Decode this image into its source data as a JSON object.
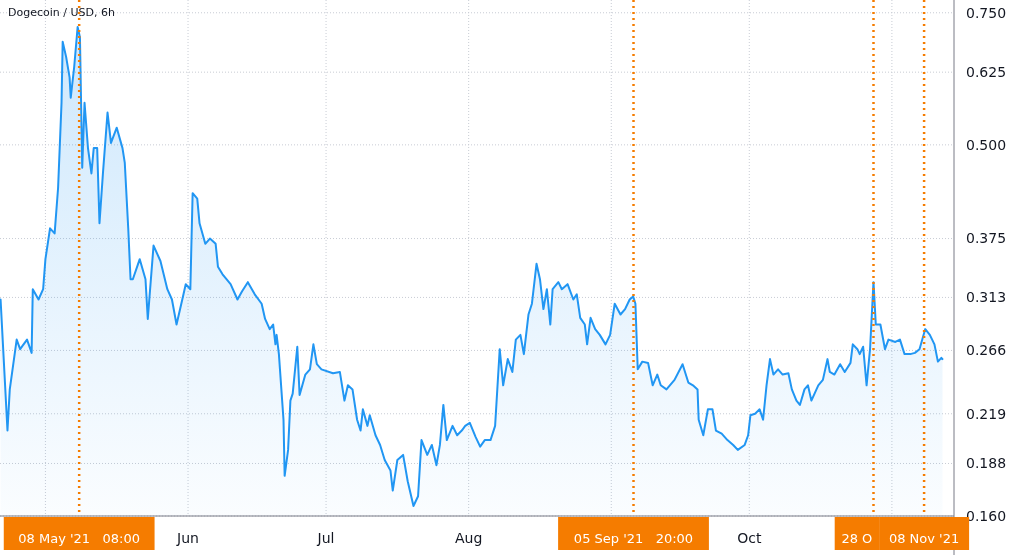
{
  "chart_data": {
    "type": "area",
    "title": "Dogecoin / USD, 6h",
    "log": true,
    "grid": true,
    "xlim": [
      "2021-04-21T03:00",
      "2021-11-14T12:00"
    ],
    "xticks": [
      {
        "value": "2021-05-01",
        "label": null
      },
      {
        "value": "2021-06-01",
        "label": "Jun"
      },
      {
        "value": "2021-07-01",
        "label": "Jul"
      },
      {
        "value": "2021-08-01",
        "label": "Aug"
      },
      {
        "value": "2021-09-01",
        "label": null
      },
      {
        "value": "2021-10-01",
        "label": "Oct"
      },
      {
        "value": "2021-11-01",
        "label": null
      }
    ],
    "ylim": [
      0.16,
      0.78
    ],
    "yticks": [
      {
        "value": 0.16,
        "label": "0.160"
      },
      {
        "value": 0.188,
        "label": "0.188"
      },
      {
        "value": 0.219,
        "label": "0.219"
      },
      {
        "value": 0.266,
        "label": "0.266"
      },
      {
        "value": 0.313,
        "label": "0.313"
      },
      {
        "value": 0.375,
        "label": "0.375"
      },
      {
        "value": 0.5,
        "label": "0.500"
      },
      {
        "value": 0.625,
        "label": "0.625"
      },
      {
        "value": 0.75,
        "label": "0.750"
      }
    ],
    "ref_lines": [
      {
        "axis": "x",
        "value": "2021-05-08T08:00",
        "label": "08 May '21   08:00",
        "color": "#f57c00",
        "line_style": "dotted"
      },
      {
        "axis": "x",
        "value": "2021-09-05T20:00",
        "label": "05 Sep '21   20:00",
        "color": "#f57c00",
        "line_style": "dotted"
      },
      {
        "axis": "x",
        "value": "2021-10-28",
        "label": "28 O",
        "color": "#f57c00",
        "line_style": "dotted"
      },
      {
        "axis": "x",
        "value": "2021-11-08",
        "label": "08 Nov '21",
        "color": "#f57c00",
        "line_style": "dotted"
      }
    ],
    "series": [
      {
        "color": "#2196f3",
        "x": [
          "2021-04-21T06:00",
          "2021-04-22T18:00",
          "2021-04-23T06:00",
          "2021-04-24T18:00",
          "2021-04-25T12:00",
          "2021-04-27T00:00",
          "2021-04-28T00:00",
          "2021-04-28T06:00",
          "2021-04-29T12:00",
          "2021-04-30T12:00",
          "2021-05-01T00:00",
          "2021-05-02T00:00",
          "2021-05-03T00:00",
          "2021-05-03T18:00",
          "2021-05-04T12:00",
          "2021-05-04T18:00",
          "2021-05-05T12:00",
          "2021-05-06T06:00",
          "2021-05-06T12:00",
          "2021-05-07T06:00",
          "2021-05-08T00:00",
          "2021-05-08T12:00",
          "2021-05-09T00:00",
          "2021-05-09T12:00",
          "2021-05-10T06:00",
          "2021-05-11T00:00",
          "2021-05-11T12:00",
          "2021-05-12T06:00",
          "2021-05-12T18:00",
          "2021-05-13T12:00",
          "2021-05-14T12:00",
          "2021-05-15T06:00",
          "2021-05-16T12:00",
          "2021-05-17T18:00",
          "2021-05-18T06:00",
          "2021-05-19T00:00",
          "2021-05-19T12:00",
          "2021-05-20T00:00",
          "2021-05-21T12:00",
          "2021-05-22T18:00",
          "2021-05-23T06:00",
          "2021-05-24T12:00",
          "2021-05-26T00:00",
          "2021-05-27T12:00",
          "2021-05-28T12:00",
          "2021-05-29T12:00",
          "2021-05-30T18:00",
          "2021-05-31T12:00",
          "2021-06-01T12:00",
          "2021-06-02T00:00",
          "2021-06-03T00:00",
          "2021-06-03T12:00",
          "2021-06-04T18:00",
          "2021-06-05T18:00",
          "2021-06-07T00:00",
          "2021-06-07T12:00",
          "2021-06-08T12:00",
          "2021-06-10T06:00",
          "2021-06-11T18:00",
          "2021-06-12T18:00",
          "2021-06-14T00:00",
          "2021-06-15T12:00",
          "2021-06-17T00:00",
          "2021-06-17T18:00",
          "2021-06-18T18:00",
          "2021-06-19T12:00",
          "2021-06-20T00:00",
          "2021-06-20T06:00",
          "2021-06-20T18:00",
          "2021-06-21T18:00",
          "2021-06-22T00:00",
          "2021-06-22T18:00",
          "2021-06-23T06:00",
          "2021-06-23T18:00",
          "2021-06-24T18:00",
          "2021-06-25T06:00",
          "2021-06-26T12:00",
          "2021-06-27T12:00",
          "2021-06-28T06:00",
          "2021-06-29T00:00",
          "2021-06-30T00:00",
          "2021-07-02T12:00",
          "2021-07-04T00:00",
          "2021-07-05T00:00",
          "2021-07-05T18:00",
          "2021-07-06T18:00",
          "2021-07-07T18:00",
          "2021-07-08T12:00",
          "2021-07-09T00:00",
          "2021-07-10T00:00",
          "2021-07-10T12:00",
          "2021-07-11T18:00",
          "2021-07-12T18:00",
          "2021-07-13T18:00",
          "2021-07-15T00:00",
          "2021-07-15T12:00",
          "2021-07-16T12:00",
          "2021-07-17T18:00",
          "2021-07-18T18:00",
          "2021-07-20T00:00",
          "2021-07-21T00:00",
          "2021-07-21T18:00",
          "2021-07-23T00:00",
          "2021-07-24T00:00",
          "2021-07-25T00:00",
          "2021-07-25T18:00",
          "2021-07-26T12:00",
          "2021-07-27T06:00",
          "2021-07-28T12:00",
          "2021-07-29T12:00",
          "2021-07-30T12:00",
          "2021-07-31T06:00",
          "2021-08-01T06:00",
          "2021-08-02T12:00",
          "2021-08-03T12:00",
          "2021-08-04T12:00",
          "2021-08-05T18:00",
          "2021-08-06T18:00",
          "2021-08-07T18:00",
          "2021-08-08T12:00",
          "2021-08-09T12:00",
          "2021-08-10T12:00",
          "2021-08-11T06:00",
          "2021-08-12T06:00",
          "2021-08-13T00:00",
          "2021-08-14T00:00",
          "2021-08-14T18:00",
          "2021-08-15T18:00",
          "2021-08-16T12:00",
          "2021-08-17T06:00",
          "2021-08-18T00:00",
          "2021-08-18T18:00",
          "2021-08-19T06:00",
          "2021-08-20T12:00",
          "2021-08-21T06:00",
          "2021-08-22T12:00",
          "2021-08-23T18:00",
          "2021-08-24T12:00",
          "2021-08-25T06:00",
          "2021-08-26T06:00",
          "2021-08-26T18:00",
          "2021-08-27T12:00",
          "2021-08-28T12:00",
          "2021-08-29T12:00",
          "2021-08-30T18:00",
          "2021-08-31T18:00",
          "2021-09-01T18:00",
          "2021-09-03T00:00",
          "2021-09-04T00:00",
          "2021-09-05T00:00",
          "2021-09-05T18:00",
          "2021-09-06T06:00",
          "2021-09-06T18:00",
          "2021-09-07T18:00",
          "2021-09-09T00:00",
          "2021-09-10T00:00",
          "2021-09-11T00:00",
          "2021-09-11T18:00",
          "2021-09-13T00:00",
          "2021-09-14T18:00",
          "2021-09-16T12:00",
          "2021-09-17T18:00",
          "2021-09-18T18:00",
          "2021-09-19T18:00",
          "2021-09-20T00:00",
          "2021-09-21T00:00",
          "2021-09-22T00:00",
          "2021-09-23T00:00",
          "2021-09-23T18:00",
          "2021-09-25T00:00",
          "2021-09-26T06:00",
          "2021-09-27T12:00",
          "2021-09-28T12:00",
          "2021-09-30T00:00",
          "2021-09-30T18:00",
          "2021-10-01T06:00",
          "2021-10-02T06:00",
          "2021-10-03T06:00",
          "2021-10-04T00:00",
          "2021-10-04T18:00",
          "2021-10-05T12:00",
          "2021-10-06T06:00",
          "2021-10-07T06:00",
          "2021-10-08T06:00",
          "2021-10-09T12:00",
          "2021-10-10T06:00",
          "2021-10-11T06:00",
          "2021-10-12T00:00",
          "2021-10-13T00:00",
          "2021-10-13T18:00",
          "2021-10-14T12:00",
          "2021-10-16T00:00",
          "2021-10-17T00:00",
          "2021-10-18T00:00",
          "2021-10-18T12:00",
          "2021-10-19T12:00",
          "2021-10-20T18:00",
          "2021-10-21T18:00",
          "2021-10-23T00:00",
          "2021-10-23T12:00",
          "2021-10-24T12:00",
          "2021-10-25T00:00",
          "2021-10-25T18:00",
          "2021-10-26T12:00",
          "2021-10-27T06:00",
          "2021-10-28T00:00",
          "2021-10-28T12:00",
          "2021-10-29T12:00",
          "2021-10-30T12:00",
          "2021-10-31T06:00",
          "2021-11-01T18:00",
          "2021-11-02T18:00",
          "2021-11-03T18:00",
          "2021-11-05T00:00",
          "2021-11-06T00:00",
          "2021-11-07T00:00",
          "2021-11-08T06:00",
          "2021-11-09T06:00",
          "2021-11-10T06:00",
          "2021-11-11T00:00",
          "2021-11-11T18:00",
          "2021-11-12T00:00"
        ],
        "values": [
          0.311,
          0.208,
          0.236,
          0.275,
          0.267,
          0.275,
          0.264,
          0.321,
          0.311,
          0.321,
          0.352,
          0.387,
          0.381,
          0.438,
          0.569,
          0.686,
          0.655,
          0.615,
          0.578,
          0.635,
          0.718,
          0.696,
          0.466,
          0.569,
          0.495,
          0.458,
          0.495,
          0.495,
          0.393,
          0.458,
          0.552,
          0.503,
          0.527,
          0.495,
          0.473,
          0.387,
          0.331,
          0.331,
          0.352,
          0.331,
          0.293,
          0.367,
          0.35,
          0.321,
          0.311,
          0.288,
          0.311,
          0.326,
          0.321,
          0.431,
          0.424,
          0.393,
          0.369,
          0.375,
          0.369,
          0.344,
          0.336,
          0.326,
          0.311,
          0.319,
          0.328,
          0.316,
          0.307,
          0.293,
          0.284,
          0.288,
          0.271,
          0.279,
          0.263,
          0.215,
          0.181,
          0.196,
          0.228,
          0.233,
          0.269,
          0.232,
          0.247,
          0.251,
          0.271,
          0.255,
          0.251,
          0.248,
          0.249,
          0.228,
          0.239,
          0.236,
          0.215,
          0.208,
          0.222,
          0.211,
          0.218,
          0.205,
          0.199,
          0.19,
          0.184,
          0.173,
          0.19,
          0.193,
          0.178,
          0.165,
          0.17,
          0.202,
          0.193,
          0.199,
          0.187,
          0.199,
          0.225,
          0.202,
          0.211,
          0.205,
          0.208,
          0.211,
          0.213,
          0.204,
          0.198,
          0.202,
          0.202,
          0.211,
          0.267,
          0.239,
          0.259,
          0.249,
          0.275,
          0.279,
          0.263,
          0.297,
          0.307,
          0.347,
          0.331,
          0.302,
          0.321,
          0.288,
          0.321,
          0.328,
          0.321,
          0.326,
          0.311,
          0.316,
          0.294,
          0.288,
          0.271,
          0.294,
          0.284,
          0.279,
          0.271,
          0.279,
          0.307,
          0.297,
          0.302,
          0.311,
          0.314,
          0.307,
          0.251,
          0.257,
          0.256,
          0.239,
          0.247,
          0.239,
          0.236,
          0.243,
          0.255,
          0.241,
          0.239,
          0.236,
          0.215,
          0.205,
          0.222,
          0.222,
          0.208,
          0.206,
          0.202,
          0.199,
          0.196,
          0.199,
          0.205,
          0.218,
          0.219,
          0.222,
          0.215,
          0.239,
          0.259,
          0.247,
          0.251,
          0.247,
          0.248,
          0.236,
          0.228,
          0.225,
          0.236,
          0.239,
          0.228,
          0.239,
          0.243,
          0.259,
          0.249,
          0.247,
          0.255,
          0.249,
          0.256,
          0.271,
          0.267,
          0.263,
          0.269,
          0.239,
          0.267,
          0.328,
          0.288,
          0.288,
          0.267,
          0.275,
          0.273,
          0.275,
          0.263,
          0.263,
          0.264,
          0.267,
          0.284,
          0.279,
          0.271,
          0.257,
          0.26,
          0.259
        ]
      }
    ]
  }
}
